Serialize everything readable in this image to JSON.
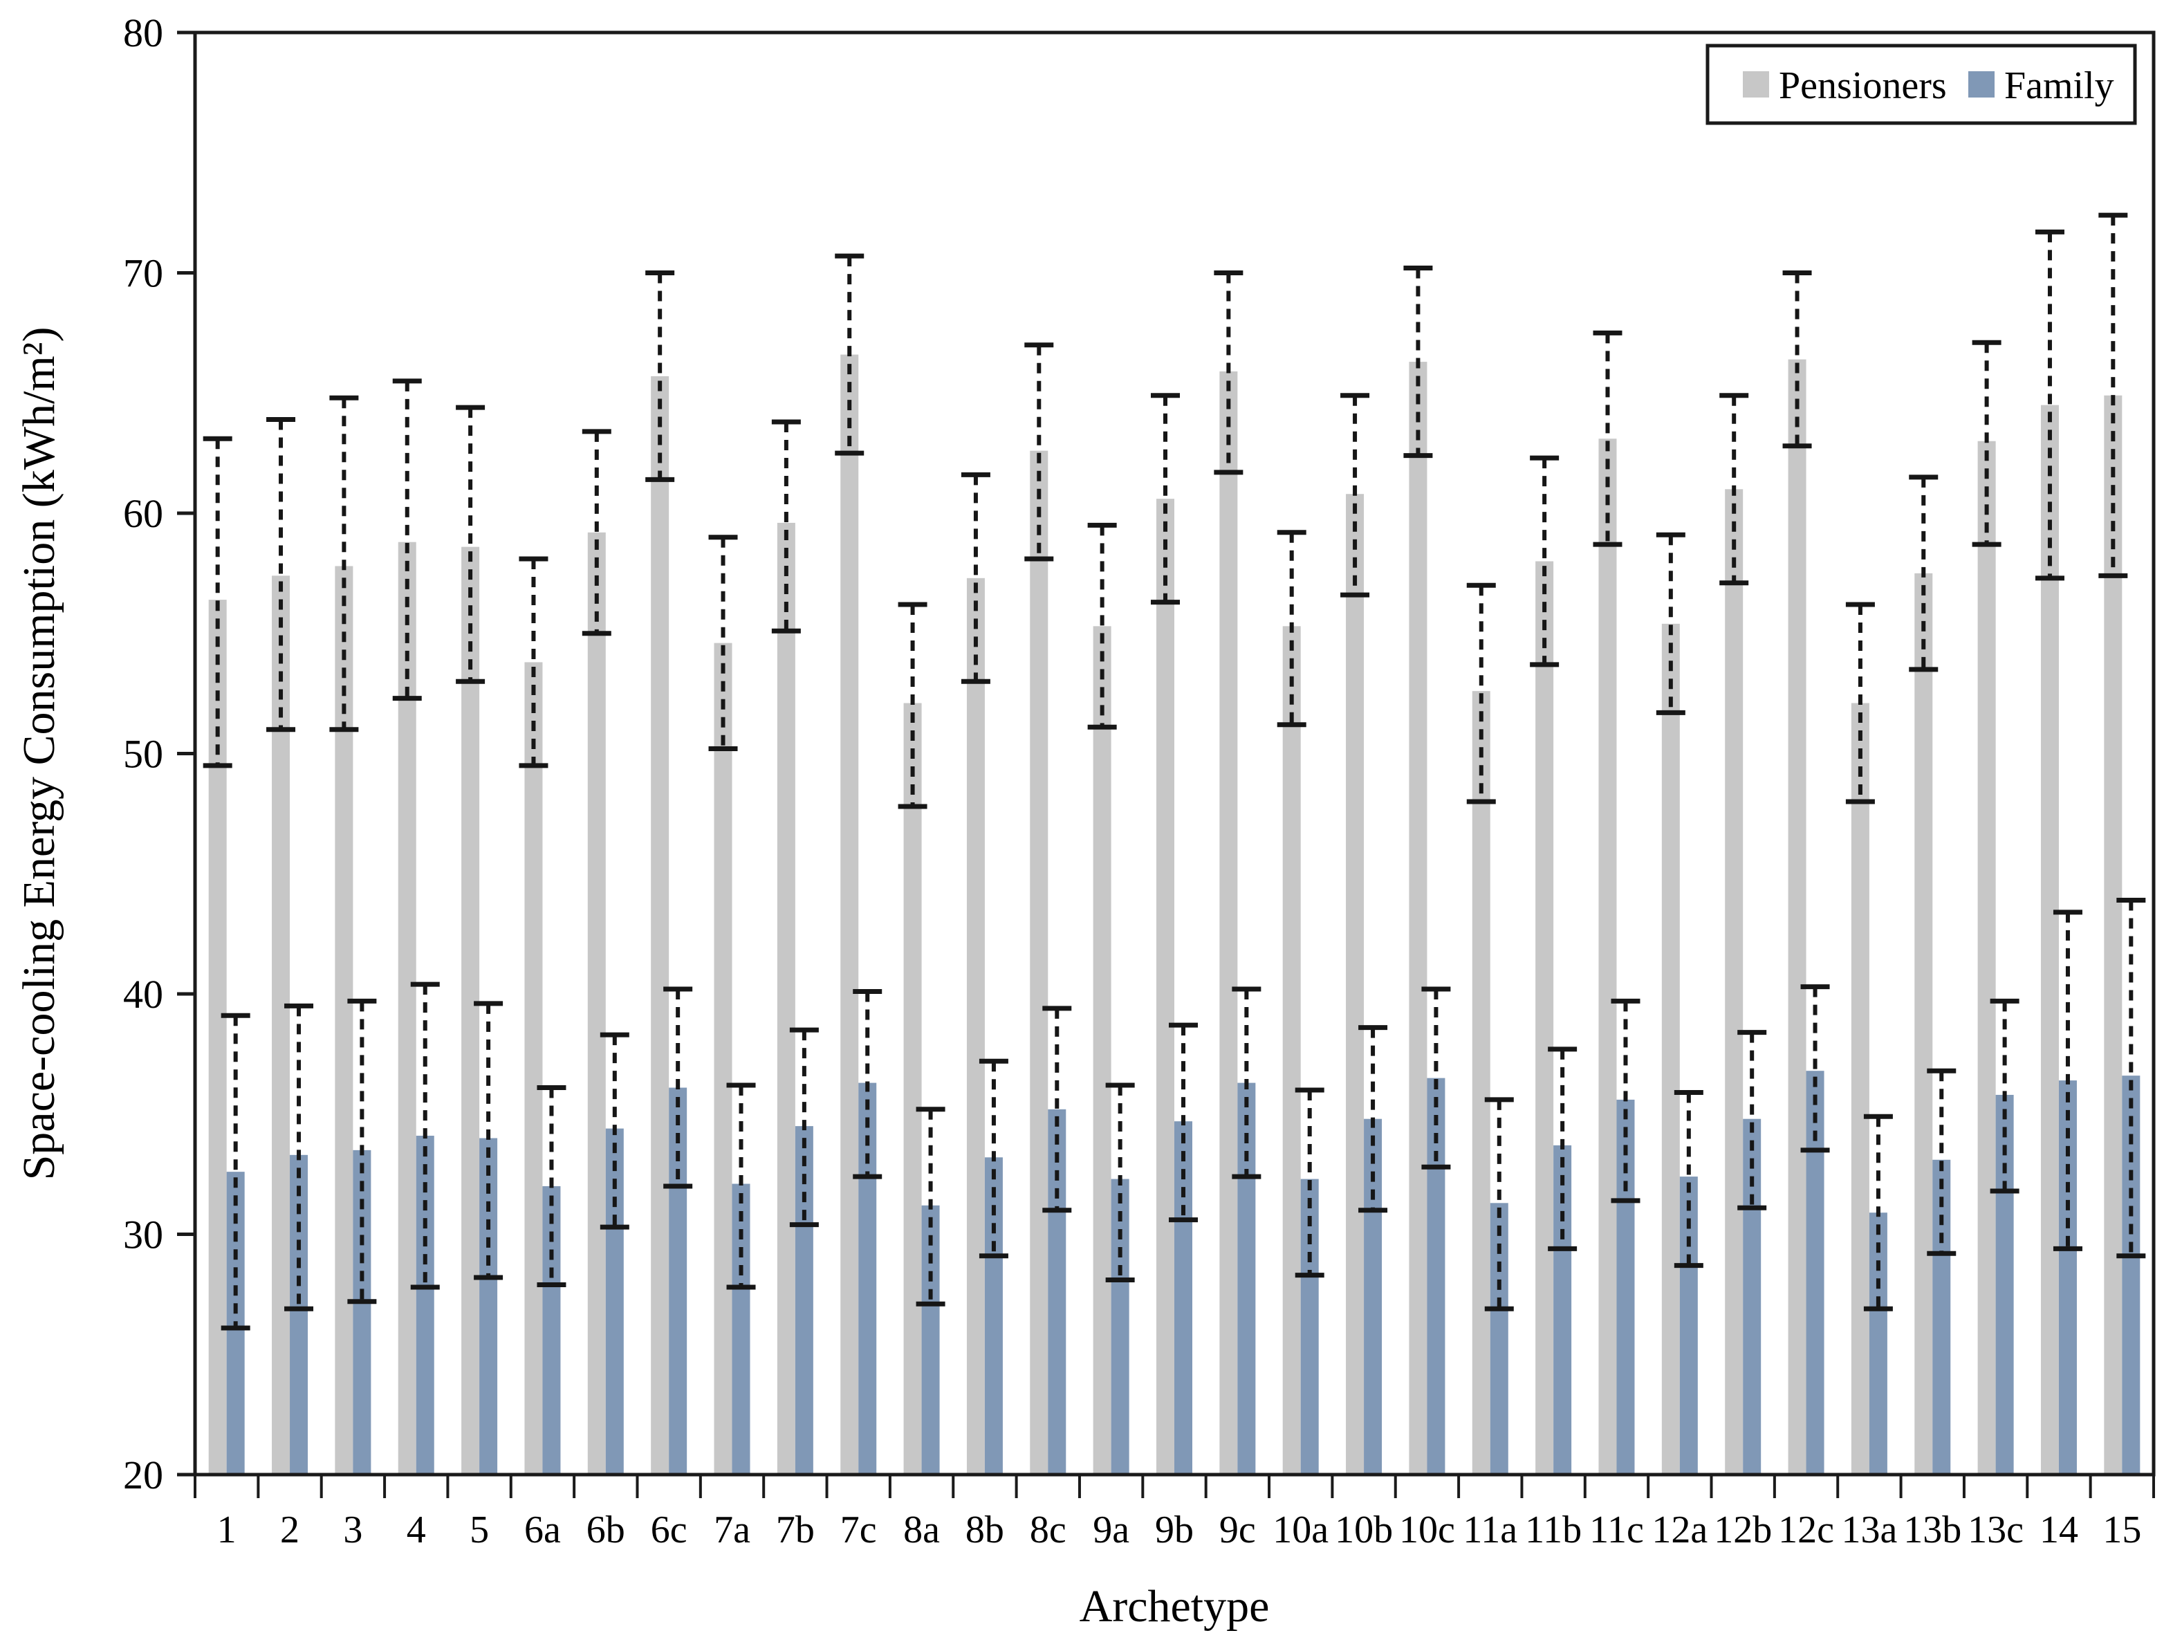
{
  "figure": {
    "legend": {
      "pensioners_label": "Pensioners",
      "family_label": "Family"
    },
    "colors": {
      "pensioners": "#C7C7C7",
      "family": "#8098B6",
      "error": "#161616",
      "axis": "#1A1A1A",
      "background": "#FFFFFF"
    }
  },
  "chart_data": {
    "type": "bar",
    "title": "",
    "xlabel": "Archetype",
    "ylabel": "Space-cooling Energy Consumption (kWh/m²)",
    "ylim": [
      20,
      80
    ],
    "yticks": [
      20,
      30,
      40,
      50,
      60,
      70,
      80
    ],
    "grid": false,
    "legend_position": "top-right",
    "error_bar_style": "dashed",
    "categories": [
      "1",
      "2",
      "3",
      "4",
      "5",
      "6a",
      "6b",
      "6c",
      "7a",
      "7b",
      "7c",
      "8a",
      "8b",
      "8c",
      "9a",
      "9b",
      "9c",
      "10a",
      "10b",
      "10c",
      "11a",
      "11b",
      "11c",
      "12a",
      "12b",
      "12c",
      "13a",
      "13b",
      "13c",
      "14",
      "15"
    ],
    "series": [
      {
        "name": "Pensioners",
        "color": "#C7C7C7",
        "values": [
          56.4,
          57.4,
          57.8,
          58.8,
          58.6,
          53.8,
          59.2,
          65.7,
          54.6,
          59.6,
          66.6,
          52.1,
          57.3,
          62.6,
          55.3,
          60.6,
          65.9,
          55.3,
          60.8,
          66.3,
          52.6,
          58.0,
          63.1,
          55.4,
          61.0,
          66.4,
          52.1,
          57.5,
          63.0,
          64.5,
          64.9
        ],
        "error_low": [
          49.5,
          51.0,
          51.0,
          52.3,
          53.0,
          49.5,
          55.0,
          61.4,
          50.2,
          55.1,
          62.5,
          47.8,
          53.0,
          58.1,
          51.1,
          56.3,
          61.7,
          51.2,
          56.6,
          62.4,
          48.0,
          53.7,
          58.7,
          51.7,
          57.1,
          62.8,
          48.0,
          53.5,
          58.7,
          57.3,
          57.4
        ],
        "error_high": [
          63.1,
          63.9,
          64.8,
          65.5,
          64.4,
          58.1,
          63.4,
          70.0,
          59.0,
          63.8,
          70.7,
          56.2,
          61.6,
          67.0,
          59.5,
          64.9,
          70.0,
          59.2,
          64.9,
          70.2,
          57.0,
          62.3,
          67.5,
          59.1,
          64.9,
          70.0,
          56.2,
          61.5,
          67.1,
          71.7,
          72.4
        ]
      },
      {
        "name": "Family",
        "color": "#8098B6",
        "values": [
          32.6,
          33.3,
          33.5,
          34.1,
          34.0,
          32.0,
          34.4,
          36.1,
          32.1,
          34.5,
          36.3,
          31.2,
          33.2,
          35.2,
          32.3,
          34.7,
          36.3,
          32.3,
          34.8,
          36.5,
          31.3,
          33.7,
          35.6,
          32.4,
          34.8,
          36.8,
          30.9,
          33.1,
          35.8,
          36.4,
          36.6
        ],
        "error_low": [
          26.1,
          26.9,
          27.2,
          27.8,
          28.2,
          27.9,
          30.3,
          32.0,
          27.8,
          30.4,
          32.4,
          27.1,
          29.1,
          31.0,
          28.1,
          30.6,
          32.4,
          28.3,
          31.0,
          32.8,
          26.9,
          29.4,
          31.4,
          28.7,
          31.1,
          33.5,
          26.9,
          29.2,
          31.8,
          29.4,
          29.1
        ],
        "error_high": [
          39.1,
          39.5,
          39.7,
          40.4,
          39.6,
          36.1,
          38.3,
          40.2,
          36.2,
          38.5,
          40.1,
          35.2,
          37.2,
          39.4,
          36.2,
          38.7,
          40.2,
          36.0,
          38.6,
          40.2,
          35.6,
          37.7,
          39.7,
          35.9,
          38.4,
          40.3,
          34.9,
          36.8,
          39.7,
          43.4,
          43.9
        ]
      }
    ]
  }
}
